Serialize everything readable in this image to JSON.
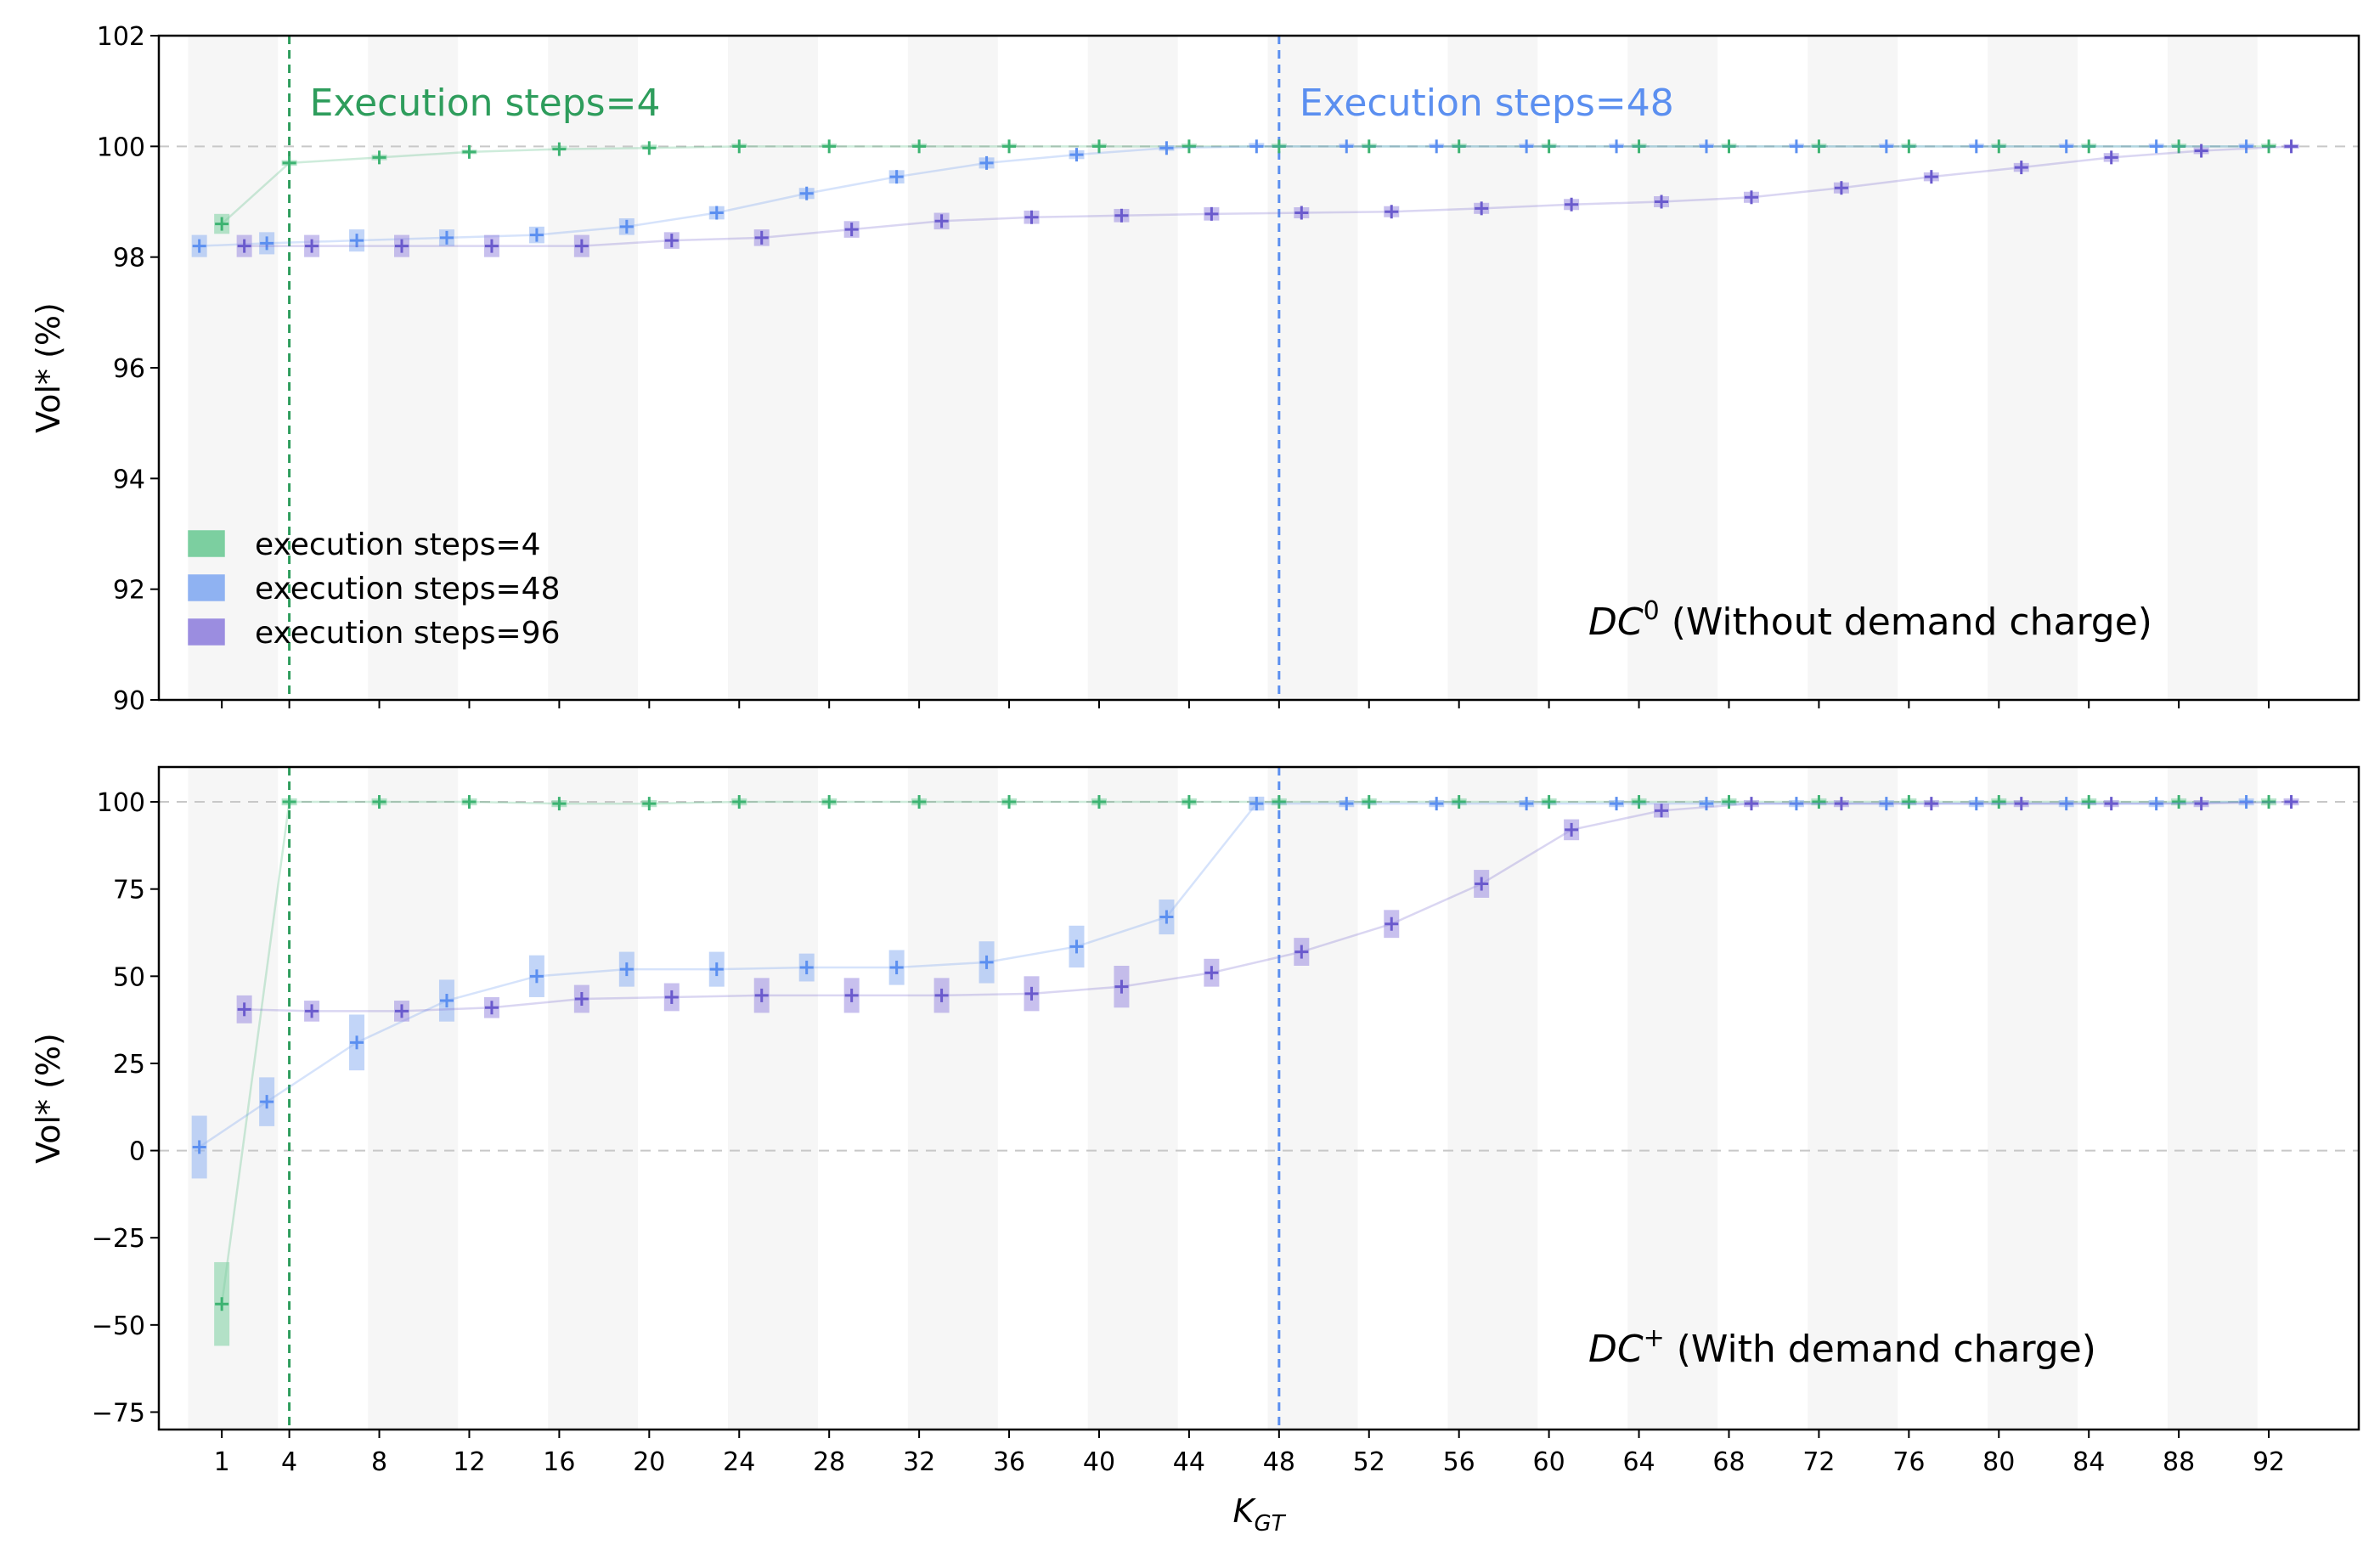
{
  "chart_data": [
    {
      "type": "scatter",
      "panel": "DC0",
      "ylabel": "Vol* (%)",
      "ylim": [
        90,
        102
      ],
      "yticks": [
        90,
        92,
        94,
        96,
        98,
        100,
        102
      ],
      "panel_label": {
        "main": "DC",
        "sup": "0",
        "rest": " (Without demand charge)"
      },
      "series": [
        {
          "name": "execution steps=4",
          "color": "#3cb371",
          "points": [
            [
              1,
              98.6,
              0.18
            ],
            [
              4,
              99.7,
              0.05
            ],
            [
              8,
              99.8,
              0.05
            ],
            [
              12,
              99.9,
              0.04
            ],
            [
              16,
              99.95,
              0.03
            ],
            [
              20,
              99.97,
              0.03
            ],
            [
              24,
              100,
              0.02
            ],
            [
              28,
              100,
              0.02
            ],
            [
              32,
              100,
              0.02
            ],
            [
              36,
              100,
              0.02
            ],
            [
              40,
              100,
              0.02
            ],
            [
              44,
              100,
              0.02
            ],
            [
              48,
              100,
              0.02
            ],
            [
              52,
              100,
              0.02
            ],
            [
              56,
              100,
              0.02
            ],
            [
              60,
              100,
              0.02
            ],
            [
              64,
              100,
              0.02
            ],
            [
              68,
              100,
              0.02
            ],
            [
              72,
              100,
              0.02
            ],
            [
              76,
              100,
              0.02
            ],
            [
              80,
              100,
              0.02
            ],
            [
              84,
              100,
              0.02
            ],
            [
              88,
              100,
              0.02
            ],
            [
              92,
              100,
              0.02
            ]
          ]
        },
        {
          "name": "execution steps=48",
          "color": "#5b8ff0",
          "points": [
            [
              1,
              98.2,
              0.2
            ],
            [
              4,
              98.25,
              0.2
            ],
            [
              8,
              98.3,
              0.2
            ],
            [
              12,
              98.35,
              0.15
            ],
            [
              16,
              98.4,
              0.15
            ],
            [
              20,
              98.55,
              0.15
            ],
            [
              24,
              98.8,
              0.12
            ],
            [
              28,
              99.15,
              0.1
            ],
            [
              32,
              99.45,
              0.12
            ],
            [
              36,
              99.7,
              0.1
            ],
            [
              40,
              99.85,
              0.08
            ],
            [
              44,
              99.97,
              0.05
            ],
            [
              48,
              100,
              0.03
            ],
            [
              52,
              100,
              0.02
            ],
            [
              56,
              100,
              0.02
            ],
            [
              60,
              100,
              0.02
            ],
            [
              64,
              100,
              0.02
            ],
            [
              68,
              100,
              0.02
            ],
            [
              72,
              100,
              0.02
            ],
            [
              76,
              100,
              0.02
            ],
            [
              80,
              100,
              0.02
            ],
            [
              84,
              100,
              0.02
            ],
            [
              88,
              100,
              0.02
            ],
            [
              92,
              100,
              0.02
            ]
          ]
        },
        {
          "name": "execution steps=96",
          "color": "#6a5acd",
          "points": [
            [
              1,
              98.2,
              0.2
            ],
            [
              4,
              98.2,
              0.2
            ],
            [
              8,
              98.2,
              0.2
            ],
            [
              12,
              98.2,
              0.2
            ],
            [
              16,
              98.2,
              0.2
            ],
            [
              20,
              98.3,
              0.15
            ],
            [
              24,
              98.35,
              0.15
            ],
            [
              28,
              98.5,
              0.15
            ],
            [
              32,
              98.65,
              0.15
            ],
            [
              36,
              98.72,
              0.12
            ],
            [
              40,
              98.75,
              0.12
            ],
            [
              44,
              98.78,
              0.12
            ],
            [
              48,
              98.8,
              0.1
            ],
            [
              52,
              98.82,
              0.1
            ],
            [
              56,
              98.88,
              0.1
            ],
            [
              60,
              98.95,
              0.1
            ],
            [
              64,
              99.0,
              0.1
            ],
            [
              68,
              99.08,
              0.1
            ],
            [
              72,
              99.25,
              0.1
            ],
            [
              76,
              99.45,
              0.08
            ],
            [
              80,
              99.62,
              0.08
            ],
            [
              84,
              99.8,
              0.08
            ],
            [
              88,
              99.92,
              0.06
            ],
            [
              92,
              100,
              0.04
            ]
          ]
        }
      ]
    },
    {
      "type": "scatter",
      "panel": "DC+",
      "ylabel": "Vol* (%)",
      "xlabel_main": "K",
      "xlabel_sub": "GT",
      "ylim": [
        -80,
        110
      ],
      "yticks": [
        -75,
        -50,
        -25,
        0,
        25,
        50,
        75,
        100
      ],
      "panel_label": {
        "main": "DC",
        "sup": "+",
        "rest": " (With demand charge)"
      },
      "series": [
        {
          "name": "execution steps=4",
          "color": "#3cb371",
          "points": [
            [
              1,
              -44,
              12
            ],
            [
              4,
              100,
              1
            ],
            [
              8,
              100,
              1
            ],
            [
              12,
              100,
              1
            ],
            [
              16,
              99.5,
              1
            ],
            [
              20,
              99.5,
              1
            ],
            [
              24,
              100,
              1
            ],
            [
              28,
              100,
              1
            ],
            [
              32,
              100,
              1
            ],
            [
              36,
              100,
              1
            ],
            [
              40,
              100,
              1
            ],
            [
              44,
              100,
              1
            ],
            [
              48,
              100,
              1
            ],
            [
              52,
              100,
              1
            ],
            [
              56,
              100,
              1
            ],
            [
              60,
              100,
              1
            ],
            [
              64,
              100,
              1
            ],
            [
              68,
              100,
              1
            ],
            [
              72,
              100,
              1
            ],
            [
              76,
              100,
              1
            ],
            [
              80,
              100,
              1
            ],
            [
              84,
              100,
              1
            ],
            [
              88,
              100,
              1
            ],
            [
              92,
              100,
              1
            ]
          ]
        },
        {
          "name": "execution steps=48",
          "color": "#5b8ff0",
          "points": [
            [
              1,
              1,
              9
            ],
            [
              4,
              14,
              7
            ],
            [
              8,
              31,
              8
            ],
            [
              12,
              43,
              6
            ],
            [
              16,
              50,
              6
            ],
            [
              20,
              52,
              5
            ],
            [
              24,
              52,
              5
            ],
            [
              28,
              52.5,
              4
            ],
            [
              32,
              52.5,
              5
            ],
            [
              36,
              54,
              6
            ],
            [
              40,
              58.5,
              6
            ],
            [
              44,
              67,
              5
            ],
            [
              48,
              99.5,
              2
            ],
            [
              52,
              99.5,
              1
            ],
            [
              56,
              99.5,
              1
            ],
            [
              60,
              99.5,
              1
            ],
            [
              64,
              99.5,
              1
            ],
            [
              68,
              99.5,
              1
            ],
            [
              72,
              99.5,
              1
            ],
            [
              76,
              99.5,
              1
            ],
            [
              80,
              99.5,
              1
            ],
            [
              84,
              99.5,
              1
            ],
            [
              88,
              99.5,
              1
            ],
            [
              92,
              100,
              1
            ]
          ]
        },
        {
          "name": "execution steps=96",
          "color": "#6a5acd",
          "points": [
            [
              1,
              40.5,
              4
            ],
            [
              4,
              40,
              3
            ],
            [
              8,
              40,
              3
            ],
            [
              12,
              41,
              3
            ],
            [
              16,
              43.5,
              4
            ],
            [
              20,
              44,
              4
            ],
            [
              24,
              44.5,
              5
            ],
            [
              28,
              44.5,
              5
            ],
            [
              32,
              44.5,
              5
            ],
            [
              36,
              45,
              5
            ],
            [
              40,
              47,
              6
            ],
            [
              44,
              51,
              4
            ],
            [
              48,
              57,
              4
            ],
            [
              52,
              65,
              4
            ],
            [
              56,
              76.5,
              4
            ],
            [
              60,
              92,
              3
            ],
            [
              64,
              97.5,
              2
            ],
            [
              68,
              99.5,
              1
            ],
            [
              72,
              99.5,
              1
            ],
            [
              76,
              99.5,
              1
            ],
            [
              80,
              99.5,
              1
            ],
            [
              84,
              99.5,
              1
            ],
            [
              88,
              99.5,
              1
            ],
            [
              92,
              100,
              1
            ]
          ]
        }
      ]
    }
  ],
  "x_axis": {
    "ticks": [
      1,
      4,
      8,
      12,
      16,
      20,
      24,
      28,
      32,
      36,
      40,
      44,
      48,
      52,
      56,
      60,
      64,
      68,
      72,
      76,
      80,
      84,
      88,
      92
    ],
    "xlim": [
      -1.8,
      96
    ],
    "shaded_bands": [
      [
        -0.5,
        3.5
      ],
      [
        7.5,
        11.5
      ],
      [
        15.5,
        19.5
      ],
      [
        23.5,
        27.5
      ],
      [
        31.5,
        35.5
      ],
      [
        39.5,
        43.5
      ],
      [
        47.5,
        51.5
      ],
      [
        55.5,
        59.5
      ],
      [
        63.5,
        67.5
      ],
      [
        71.5,
        75.5
      ],
      [
        79.5,
        83.5
      ],
      [
        87.5,
        91.5
      ]
    ]
  },
  "vlines": [
    {
      "x": 4,
      "color": "#2e9d5c",
      "label": "Execution steps=4"
    },
    {
      "x": 48,
      "color": "#5b8ff0",
      "label": "Execution steps=48"
    }
  ],
  "legend": {
    "placement": "lower-left",
    "entries": [
      {
        "label": "execution steps=4",
        "color": "#7ccfa0"
      },
      {
        "label": "execution steps=48",
        "color": "#8fb2f2"
      },
      {
        "label": "execution steps=96",
        "color": "#9b8de0"
      }
    ]
  }
}
